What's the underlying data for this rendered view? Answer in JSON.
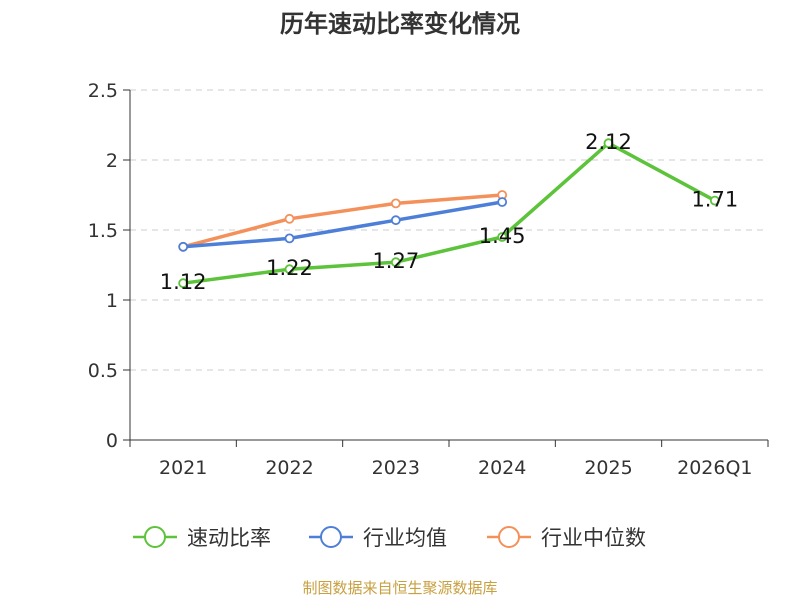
{
  "chart_data": {
    "type": "line",
    "title": "历年速动比率变化情况",
    "categories": [
      "2021",
      "2022",
      "2023",
      "2024",
      "2025",
      "2026Q1"
    ],
    "ylim": [
      0,
      2.5
    ],
    "yticks": [
      "0",
      "0.5",
      "1",
      "1.5",
      "2",
      "2.5"
    ],
    "grid": true,
    "legend_position": "bottom",
    "series": [
      {
        "name": "速动比率",
        "color": "#5cc33a",
        "values": [
          1.12,
          1.22,
          1.27,
          1.45,
          2.12,
          1.71
        ],
        "labels": [
          "1.12",
          "1.22",
          "1.27",
          "1.45",
          "2.12",
          "1.71"
        ]
      },
      {
        "name": "行业均值",
        "color": "#4e7fd8",
        "values": [
          1.38,
          1.44,
          1.57,
          1.7,
          null,
          null
        ]
      },
      {
        "name": "行业中位数",
        "color": "#f4915b",
        "values": [
          1.38,
          1.58,
          1.69,
          1.75,
          null,
          null
        ]
      }
    ],
    "source": "制图数据来自恒生聚源数据库"
  }
}
